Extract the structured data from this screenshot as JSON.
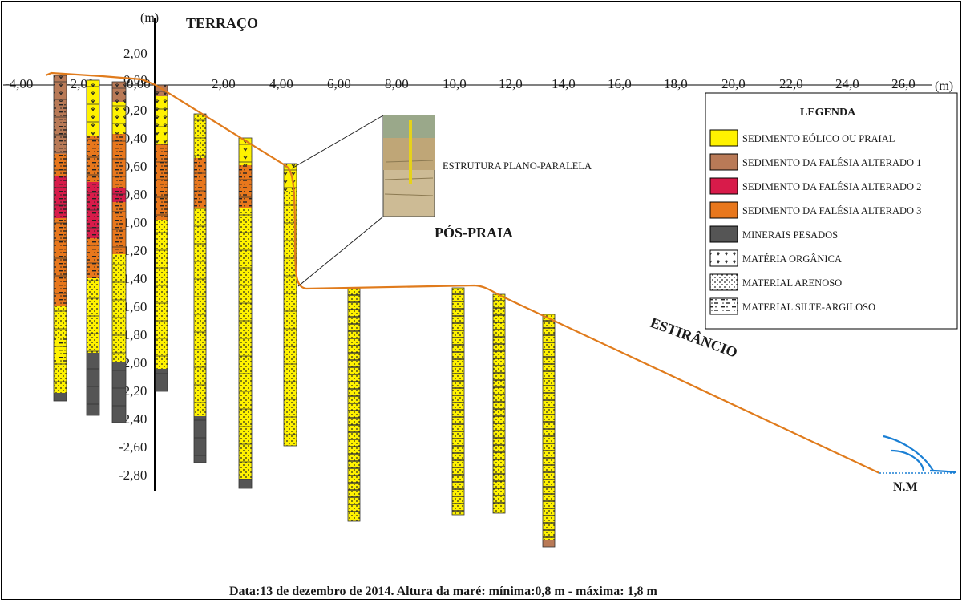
{
  "axis": {
    "x_unit": "(m)",
    "y_unit": "(m)",
    "x_ticks": [
      "-4,00",
      "-2,00",
      "0,00",
      "2,00",
      "4,00",
      "6,00",
      "8,00",
      "10,0",
      "12,0",
      "14,0",
      "16,0",
      "18,0",
      "20,0",
      "22,0",
      "24,0",
      "26,0"
    ],
    "y_ticks_pos": [
      "2,00",
      "0,00"
    ],
    "y_ticks_neg": [
      "-0,20",
      "-0,40",
      "-0,60",
      "-0,80",
      "-1,00",
      "-1,20",
      "-1,40",
      "-1,60",
      "-1,80",
      "-2,00",
      "-2,20",
      "-2,40",
      "-2,60",
      "-2,80"
    ]
  },
  "zones": {
    "terraco": "TERRAÇO",
    "pos_praia": "PÓS-PRAIA",
    "estirancio": "ESTIRÂNCIO",
    "nm": "N.M"
  },
  "photo": {
    "label": "ESTRUTURA PLANO-PARALELA"
  },
  "legend": {
    "title": "LEGENDA",
    "items": [
      {
        "key": "eolico",
        "label": "SEDIMENTO EÓLICO OU PRAIAL",
        "color": "#fff200"
      },
      {
        "key": "alt1",
        "label": "SEDIMENTO DA FALÉSIA ALTERADO 1",
        "color": "#b97a57"
      },
      {
        "key": "alt2",
        "label": "SEDIMENTO DA FALÉSIA ALTERADO 2",
        "color": "#d81b4a"
      },
      {
        "key": "alt3",
        "label": "SEDIMENTO DA FALÉSIA ALTERADO 3",
        "color": "#e8771c"
      },
      {
        "key": "pesados",
        "label": "MINERAIS PESADOS",
        "color": "#555555"
      },
      {
        "key": "organica",
        "label": "MATÉRIA ORGÂNICA"
      },
      {
        "key": "arenoso",
        "label": "MATERIAL ARENOSO"
      },
      {
        "key": "silte",
        "label": "MATERIAL SILTE-ARGILOSO"
      }
    ]
  },
  "caption": "Data:13 de dezembro de 2014. Altura da maré: mínima:0,8 m - máxima: 1,8 m",
  "colors": {
    "profile": "#e07b1c",
    "wave": "#1a7fd4",
    "eolico": "#fff200",
    "alt1": "#b97a57",
    "alt2": "#d81b4a",
    "alt3": "#e8771c",
    "pesados": "#555555"
  }
}
